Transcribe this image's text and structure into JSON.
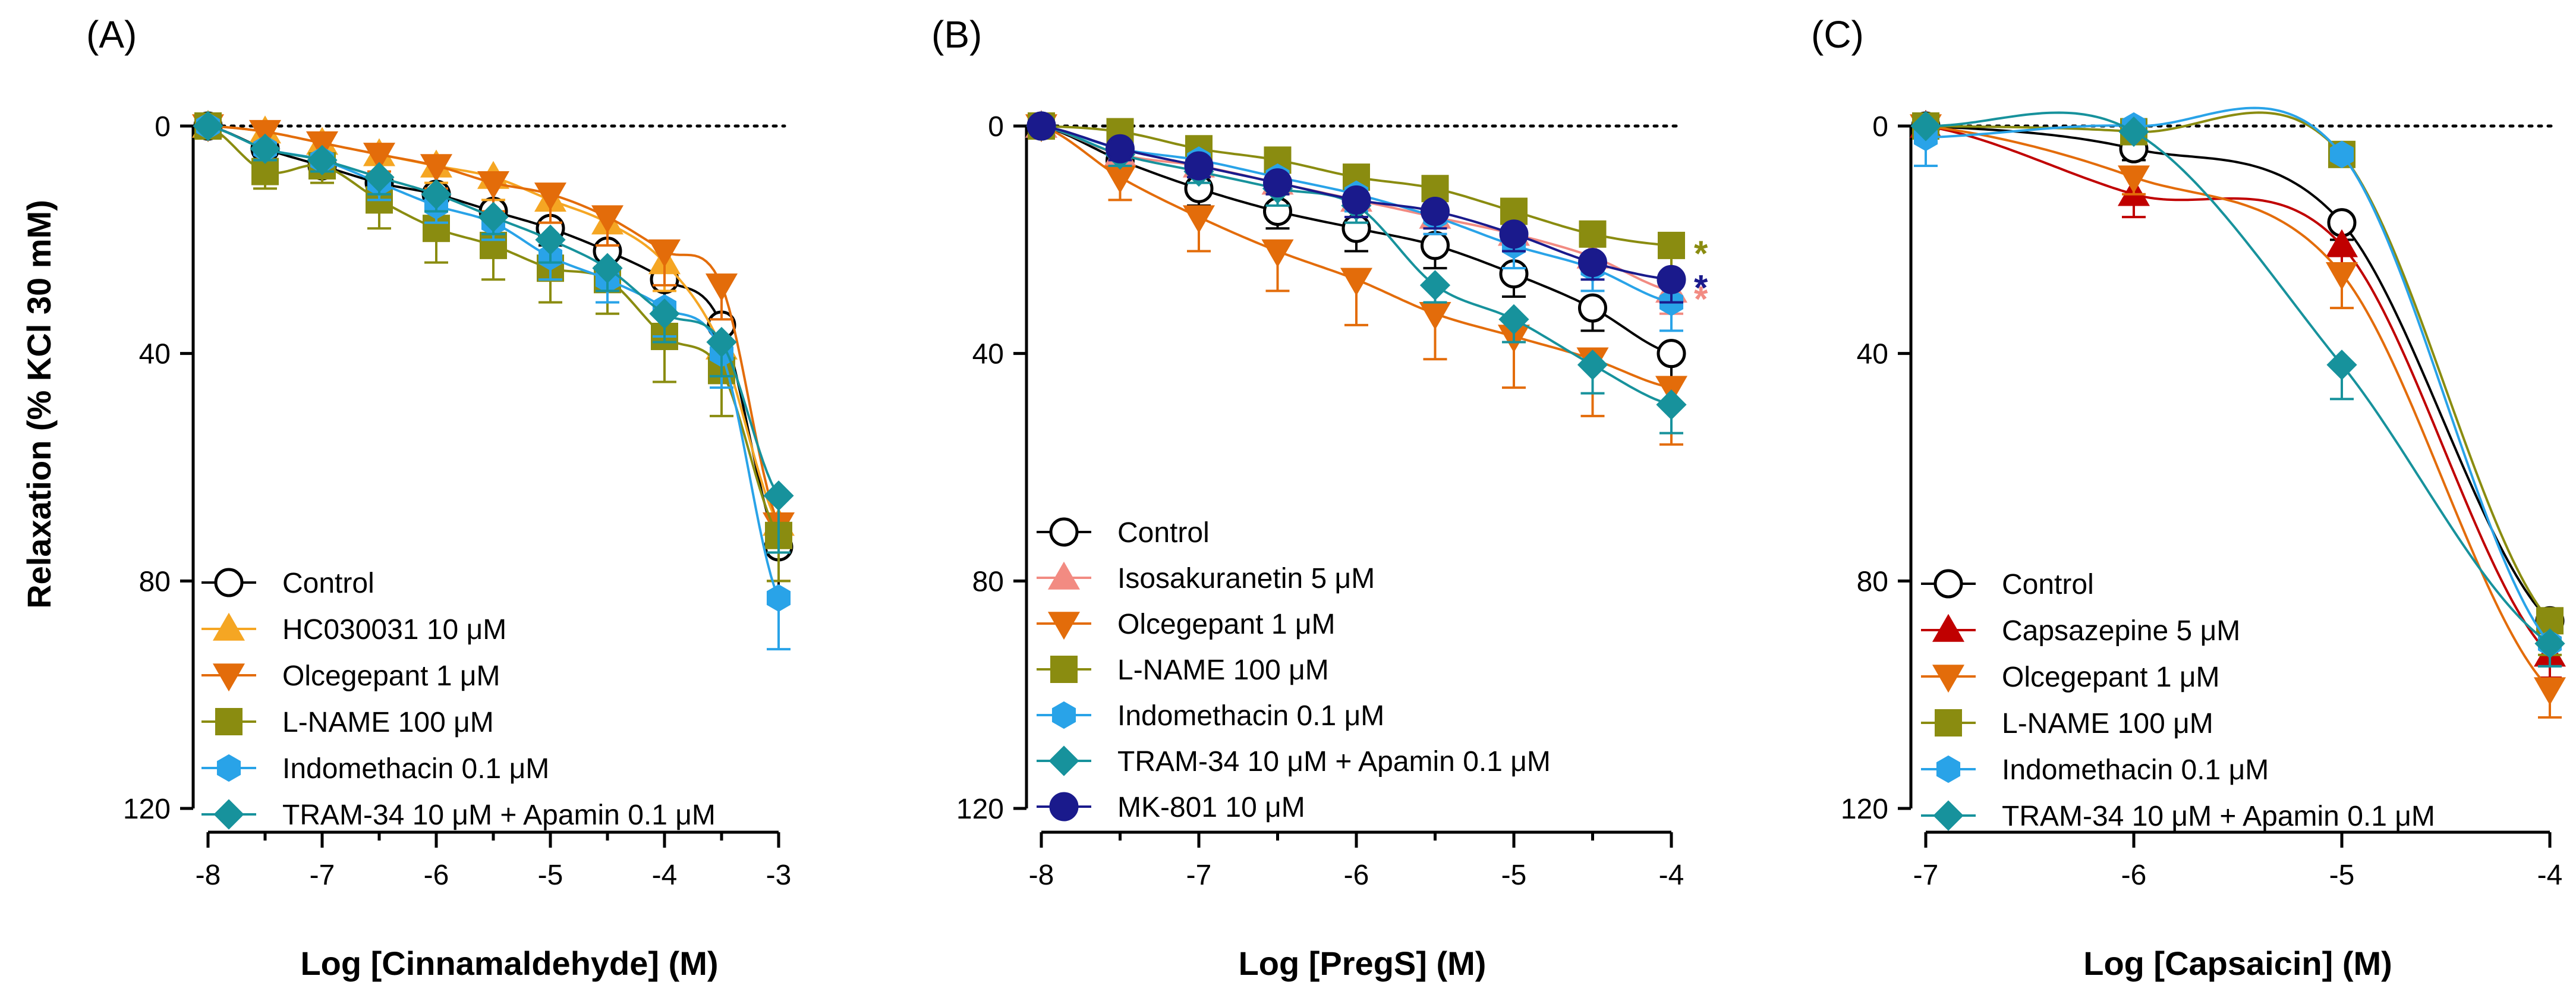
{
  "figure": {
    "ylabel": "Relaxation (% KCl 30 mM)"
  },
  "chart_data": [
    {
      "type": "scatter",
      "id": "A",
      "panel_label": "(A)",
      "xlabel": "Log [Cinnamaldehyde] (M)",
      "ylabel": "Relaxation (% KCl 30 mM)",
      "xlim": [
        -8,
        -3
      ],
      "ylim": [
        0,
        120
      ],
      "y_inverted": true,
      "xticks": [
        "-8",
        "-7",
        "-6",
        "-5",
        "-4",
        "-3"
      ],
      "xtick_values": [
        -8,
        -7,
        -6,
        -5,
        -4,
        -3
      ],
      "yticks": [
        "0",
        "40",
        "80",
        "120"
      ],
      "ytick_values": [
        0,
        40,
        80,
        120
      ],
      "x": [
        -8,
        -7.5,
        -7,
        -6.5,
        -6,
        -5.5,
        -5,
        -4.5,
        -4,
        -3.5,
        -3
      ],
      "legend": "bottom-left",
      "series": [
        {
          "name": "Control",
          "marker": "circle",
          "color": "#000000",
          "fill": "#ffffff",
          "values": [
            0,
            4,
            7,
            10,
            12,
            15,
            18,
            22,
            27,
            35,
            74
          ],
          "errors": [
            1,
            2,
            2,
            3,
            3,
            3,
            3,
            4,
            4,
            5,
            8
          ]
        },
        {
          "name": "HC030031 10 μM",
          "marker": "triangle-up",
          "color": "#f5a623",
          "fill": "#f5a623",
          "values": [
            0,
            1,
            3,
            5,
            7,
            9,
            13,
            17,
            24,
            39,
            70
          ],
          "errors": [
            1,
            2,
            2,
            3,
            3,
            4,
            4,
            4,
            5,
            6,
            10
          ]
        },
        {
          "name": "Olcegepant 1 μM",
          "marker": "triangle-down",
          "color": "#e36c0a",
          "fill": "#e36c0a",
          "values": [
            0,
            1,
            3,
            5,
            7,
            10,
            12,
            16,
            22,
            28,
            70
          ],
          "errors": [
            1,
            2,
            3,
            3,
            4,
            5,
            5,
            5,
            6,
            6,
            10
          ]
        },
        {
          "name": "L-NAME 100 μM",
          "marker": "square",
          "color": "#8a8c10",
          "fill": "#8a8c10",
          "values": [
            0,
            8,
            7,
            13,
            18,
            21,
            25,
            27,
            37,
            43,
            72
          ],
          "errors": [
            1,
            3,
            3,
            5,
            6,
            6,
            6,
            6,
            8,
            8,
            8
          ]
        },
        {
          "name": "Indomethacin 0.1 μM",
          "marker": "hexagon",
          "color": "#29a3e8",
          "fill": "#29a3e8",
          "values": [
            0,
            4,
            6,
            10,
            14,
            17,
            23,
            27,
            32,
            40,
            83
          ],
          "errors": [
            1,
            2,
            2,
            3,
            3,
            3,
            4,
            4,
            5,
            6,
            9
          ]
        },
        {
          "name": "TRAM-34  10 μM + Apamin  0.1 μM",
          "marker": "diamond",
          "color": "#17929c",
          "fill": "#17929c",
          "values": [
            0,
            4,
            6,
            9,
            12,
            16,
            20,
            25,
            33,
            38,
            65
          ],
          "errors": [
            1,
            2,
            2,
            3,
            3,
            3,
            4,
            4,
            5,
            6,
            10
          ]
        }
      ]
    },
    {
      "type": "scatter",
      "id": "B",
      "panel_label": "(B)",
      "xlabel": "Log [PregS] (M)",
      "ylabel": "Relaxation (% KCl 30 mM)",
      "xlim": [
        -8,
        -4
      ],
      "ylim": [
        0,
        120
      ],
      "y_inverted": true,
      "xticks": [
        "-8",
        "-7",
        "-6",
        "-5",
        "-4"
      ],
      "xtick_values": [
        -8,
        -7,
        -6,
        -5,
        -4
      ],
      "yticks": [
        "0",
        "40",
        "80",
        "120"
      ],
      "ytick_values": [
        0,
        40,
        80,
        120
      ],
      "x": [
        -8,
        -7.5,
        -7,
        -6.5,
        -6,
        -5.5,
        -5,
        -4.5,
        -4
      ],
      "legend": "bottom-left",
      "series": [
        {
          "name": "Control",
          "marker": "circle",
          "color": "#000000",
          "fill": "#ffffff",
          "values": [
            0,
            6,
            11,
            15,
            18,
            21,
            26,
            32,
            40
          ],
          "errors": [
            1,
            2,
            3,
            3,
            4,
            4,
            4,
            4,
            5
          ],
          "significance": ""
        },
        {
          "name": "Isosakuranetin 5 μM",
          "marker": "triangle-up",
          "color": "#f28b82",
          "fill": "#f28b82",
          "values": [
            0,
            5,
            7,
            10,
            13,
            16,
            19,
            23,
            29
          ],
          "errors": [
            1,
            2,
            2,
            2,
            3,
            3,
            3,
            3,
            4
          ],
          "significance": "*"
        },
        {
          "name": "Olcegepant 1 μM",
          "marker": "triangle-down",
          "color": "#e36c0a",
          "fill": "#e36c0a",
          "values": [
            0,
            9,
            16,
            22,
            27,
            33,
            37,
            41,
            46
          ],
          "errors": [
            1,
            4,
            6,
            7,
            8,
            8,
            9,
            10,
            10
          ],
          "significance": ""
        },
        {
          "name": "L-NAME 100 μM",
          "marker": "square",
          "color": "#8a8c10",
          "fill": "#8a8c10",
          "values": [
            0,
            1,
            4,
            6,
            9,
            11,
            15,
            19,
            21
          ],
          "errors": [
            1,
            2,
            2,
            3,
            3,
            4,
            5,
            5,
            5
          ],
          "significance": "*"
        },
        {
          "name": "Indomethacin 0.1 μM",
          "marker": "hexagon",
          "color": "#29a3e8",
          "fill": "#29a3e8",
          "values": [
            0,
            4,
            6,
            9,
            12,
            16,
            21,
            25,
            31
          ],
          "errors": [
            1,
            2,
            2,
            2,
            3,
            3,
            4,
            4,
            5
          ],
          "significance": ""
        },
        {
          "name": "TRAM-34  10 μM + Apamin  0.1 μM",
          "marker": "diamond",
          "color": "#17929c",
          "fill": "#17929c",
          "values": [
            0,
            5,
            8,
            11,
            14,
            28,
            34,
            42,
            49
          ],
          "errors": [
            1,
            2,
            2,
            3,
            3,
            3,
            4,
            5,
            5
          ],
          "significance": ""
        },
        {
          "name": "MK-801 10 μM",
          "marker": "circle",
          "color": "#1a1a8c",
          "fill": "#1a1a8c",
          "values": [
            0,
            4,
            7,
            10,
            13,
            15,
            19,
            24,
            27
          ],
          "errors": [
            1,
            2,
            2,
            2,
            3,
            3,
            3,
            3,
            4
          ],
          "significance": "*"
        }
      ]
    },
    {
      "type": "scatter",
      "id": "C",
      "panel_label": "(C)",
      "xlabel": "Log [Capsaicin] (M)",
      "ylabel": "Relaxation (% KCl 30 mM)",
      "xlim": [
        -7,
        -4
      ],
      "ylim": [
        0,
        120
      ],
      "y_inverted": true,
      "xticks": [
        "-7",
        "-6",
        "-5",
        "-4"
      ],
      "xtick_values": [
        -7,
        -6,
        -5,
        -4
      ],
      "yticks": [
        "0",
        "40",
        "80",
        "120"
      ],
      "ytick_values": [
        0,
        40,
        80,
        120
      ],
      "x": [
        -7,
        -6,
        -5,
        -4
      ],
      "legend": "bottom-left",
      "series": [
        {
          "name": "Control",
          "marker": "circle",
          "color": "#000000",
          "fill": "#ffffff",
          "values": [
            0,
            4,
            17,
            87
          ],
          "errors": [
            1,
            2,
            3,
            4
          ]
        },
        {
          "name": "Capsazepine 5 μM",
          "marker": "triangle-up",
          "color": "#c00000",
          "fill": "#c00000",
          "values": [
            0,
            12,
            21,
            93
          ],
          "errors": [
            1,
            4,
            4,
            4
          ]
        },
        {
          "name": "Olcegepant 1 μM",
          "marker": "triangle-down",
          "color": "#e36c0a",
          "fill": "#e36c0a",
          "values": [
            0,
            9,
            26,
            99
          ],
          "errors": [
            1,
            3,
            6,
            5
          ]
        },
        {
          "name": "L-NAME 100 μM",
          "marker": "square",
          "color": "#8a8c10",
          "fill": "#8a8c10",
          "values": [
            0,
            1,
            5,
            87
          ],
          "errors": [
            1,
            1,
            1,
            6
          ]
        },
        {
          "name": "Indomethacin 0.1 μM",
          "marker": "hexagon",
          "color": "#29a3e8",
          "fill": "#29a3e8",
          "values": [
            2,
            0,
            5,
            91
          ],
          "errors": [
            5,
            1,
            1,
            4
          ]
        },
        {
          "name": "TRAM-34  10 μM + Apamin  0.1 μM",
          "marker": "diamond",
          "color": "#17929c",
          "fill": "#17929c",
          "values": [
            0,
            1,
            42,
            91
          ],
          "errors": [
            1,
            1,
            6,
            4
          ]
        }
      ]
    }
  ]
}
